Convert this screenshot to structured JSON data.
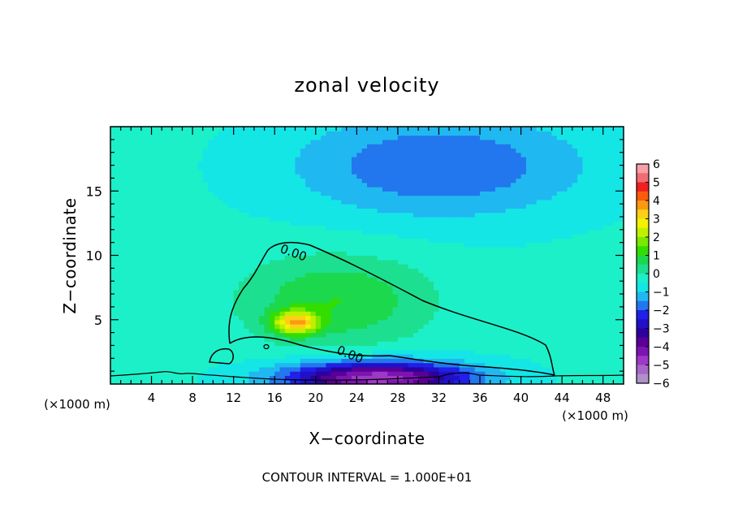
{
  "chart_data": {
    "type": "heatmap",
    "title": "zonal velocity",
    "xlabel": "X−coordinate",
    "ylabel": "Z−coordinate",
    "x_unit_left": "(×1000 m)",
    "x_unit_right": "(×1000 m)",
    "footer": "CONTOUR INTERVAL = 1.000E+01",
    "xlim": [
      0,
      50
    ],
    "ylim": [
      0,
      20
    ],
    "x_ticks": [
      4,
      8,
      12,
      16,
      20,
      24,
      28,
      32,
      36,
      40,
      44,
      48
    ],
    "x_tick_labels": [
      "4",
      "8",
      "12",
      "16",
      "20",
      "24",
      "28",
      "32",
      "36",
      "40",
      "44",
      "48"
    ],
    "y_ticks": [
      5,
      10,
      15
    ],
    "y_tick_labels": [
      "5",
      "10",
      "15"
    ],
    "contour_labels": [
      {
        "text": "0.00",
        "x": 17.7,
        "y": 9.9,
        "angle": 20
      },
      {
        "text": "0.00",
        "x": 23.2,
        "y": 2.0,
        "angle": 22
      }
    ],
    "colorbar": {
      "min": -6,
      "max": 6,
      "tick_labels": [
        "6",
        "5",
        "4",
        "3",
        "2",
        "1",
        "0",
        "−1",
        "−2",
        "−3",
        "−4",
        "−5",
        "−6"
      ],
      "colors": [
        "#f7a0a8",
        "#f26c72",
        "#ee2020",
        "#fb5a10",
        "#fb9a10",
        "#fbd118",
        "#f1f300",
        "#c0f000",
        "#7ae800",
        "#33dd00",
        "#1cd84c",
        "#1ddf90",
        "#1cf0c8",
        "#14e6e6",
        "#20b8f0",
        "#2276ee",
        "#2020e8",
        "#2010c8",
        "#2e009c",
        "#5a0096",
        "#7c14b2",
        "#9e38c6",
        "#a866c6",
        "#b090cc"
      ]
    },
    "field": {
      "background": -0.4,
      "features": [
        {
          "type": "jet",
          "x": 18,
          "y": 4.8,
          "sx": 2.2,
          "sy": 0.9,
          "amp": 3.3
        },
        {
          "type": "broad",
          "x": 22,
          "y": 6.5,
          "sx": 9,
          "sy": 3.5,
          "amp": 1.4
        },
        {
          "type": "upper_negative",
          "x": 32,
          "y": 17,
          "sx": 14,
          "sy": 4,
          "amp": -1.6
        },
        {
          "type": "surface_negative",
          "x": 26,
          "y": 0.5,
          "sx": 9,
          "sy": 1.3,
          "amp": -4.5
        }
      ]
    }
  }
}
